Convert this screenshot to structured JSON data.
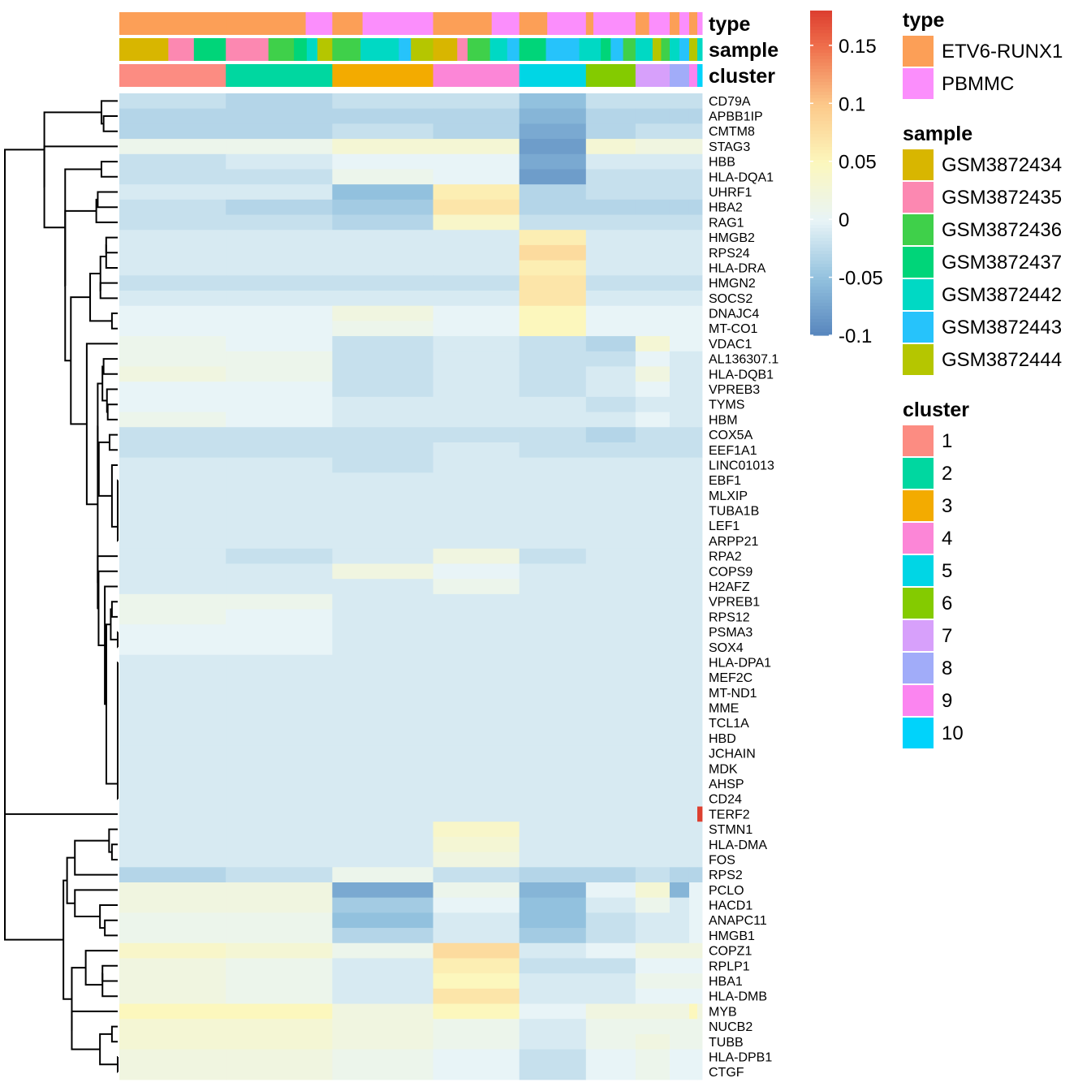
{
  "chart_data": {
    "type": "heatmap",
    "title": "",
    "annotations": [
      {
        "name": "type",
        "label": "type"
      },
      {
        "name": "sample",
        "label": "sample"
      },
      {
        "name": "cluster",
        "label": "cluster"
      }
    ],
    "column_groups": [
      {
        "cluster": "1",
        "width": 131,
        "type_segments": [
          [
            "ETV6-RUNX1",
            1.0
          ]
        ],
        "sample_segments": [
          [
            "GSM3872434",
            0.46
          ],
          [
            "GSM3872435",
            0.24
          ],
          [
            "GSM3872437",
            0.3
          ]
        ]
      },
      {
        "cluster": "2",
        "width": 131,
        "type_segments": [
          [
            "ETV6-RUNX1",
            0.75
          ],
          [
            "PBMMC",
            0.25
          ]
        ],
        "sample_segments": [
          [
            "GSM3872435",
            0.4
          ],
          [
            "GSM3872436",
            0.24
          ],
          [
            "GSM3872437",
            0.12
          ],
          [
            "GSM3872442",
            0.1
          ],
          [
            "GSM3872444",
            0.14
          ]
        ]
      },
      {
        "cluster": "3",
        "width": 124,
        "type_segments": [
          [
            "ETV6-RUNX1",
            0.3
          ],
          [
            "PBMMC",
            0.7
          ]
        ],
        "sample_segments": [
          [
            "GSM3872436",
            0.28
          ],
          [
            "GSM3872442",
            0.38
          ],
          [
            "GSM3872443",
            0.12
          ],
          [
            "GSM3872444",
            0.22
          ]
        ]
      },
      {
        "cluster": "4",
        "width": 106,
        "type_segments": [
          [
            "ETV6-RUNX1",
            0.68
          ],
          [
            "PBMMC",
            0.32
          ]
        ],
        "sample_segments": [
          [
            "GSM3872434",
            0.28
          ],
          [
            "GSM3872435",
            0.12
          ],
          [
            "GSM3872436",
            0.26
          ],
          [
            "GSM3872442",
            0.2
          ],
          [
            "GSM3872443",
            0.14
          ]
        ]
      },
      {
        "cluster": "5",
        "width": 82,
        "type_segments": [
          [
            "ETV6-RUNX1",
            0.42
          ],
          [
            "PBMMC",
            0.58
          ]
        ],
        "sample_segments": [
          [
            "GSM3872437",
            0.4
          ],
          [
            "GSM3872443",
            0.5
          ],
          [
            "GSM3872442",
            0.1
          ]
        ]
      },
      {
        "cluster": "6",
        "width": 61,
        "type_segments": [
          [
            "ETV6-RUNX1",
            0.15
          ],
          [
            "PBMMC",
            0.85
          ]
        ],
        "sample_segments": [
          [
            "GSM3872442",
            0.3
          ],
          [
            "GSM3872437",
            0.2
          ],
          [
            "GSM3872443",
            0.25
          ],
          [
            "GSM3872436",
            0.25
          ]
        ]
      },
      {
        "cluster": "7",
        "width": 42,
        "type_segments": [
          [
            "ETV6-RUNX1",
            0.4
          ],
          [
            "PBMMC",
            0.6
          ]
        ],
        "sample_segments": [
          [
            "GSM3872442",
            0.5
          ],
          [
            "GSM3872444",
            0.25
          ],
          [
            "GSM3872436",
            0.25
          ]
        ]
      },
      {
        "cluster": "8",
        "width": 24,
        "type_segments": [
          [
            "ETV6-RUNX1",
            0.5
          ],
          [
            "PBMMC",
            0.5
          ]
        ],
        "sample_segments": [
          [
            "GSM3872442",
            0.5
          ],
          [
            "GSM3872443",
            0.5
          ]
        ]
      },
      {
        "cluster": "9",
        "width": 10,
        "type_segments": [
          [
            "ETV6-RUNX1",
            1.0
          ]
        ],
        "sample_segments": [
          [
            "GSM3872444",
            1.0
          ]
        ]
      },
      {
        "cluster": "10",
        "width": 6,
        "type_segments": [
          [
            "PBMMC",
            1.0
          ]
        ],
        "sample_segments": [
          [
            "GSM3872442",
            1.0
          ]
        ]
      }
    ],
    "genes": [
      "CD79A",
      "APBB1IP",
      "CMTM8",
      "STAG3",
      "HBB",
      "HLA-DQA1",
      "UHRF1",
      "HBA2",
      "RAG1",
      "HMGB2",
      "RPS24",
      "HLA-DRA",
      "HMGN2",
      "SOCS2",
      "DNAJC4",
      "MT-CO1",
      "VDAC1",
      "AL136307.1",
      "HLA-DQB1",
      "VPREB3",
      "TYMS",
      "HBM",
      "COX5A",
      "EEF1A1",
      "LINC01013",
      "EBF1",
      "MLXIP",
      "TUBA1B",
      "LEF1",
      "ARPP21",
      "RPA2",
      "COPS9",
      "H2AFZ",
      "VPREB1",
      "RPS12",
      "PSMA3",
      "SOX4",
      "HLA-DPA1",
      "MEF2C",
      "MT-ND1",
      "MME",
      "TCL1A",
      "HBD",
      "JCHAIN",
      "MDK",
      "AHSP",
      "CD24",
      "TERF2",
      "STMN1",
      "HLA-DMA",
      "FOS",
      "RPS2",
      "PCLO",
      "HACD1",
      "ANAPC11",
      "HMGB1",
      "COPZ1",
      "RPLP1",
      "HBA1",
      "HLA-DMB",
      "MYB",
      "NUCB2",
      "TUBB",
      "HLA-DPB1",
      "CTGF"
    ],
    "values_by_cluster": {
      "CD79A": [
        -0.02,
        -0.03,
        -0.02,
        -0.02,
        -0.05,
        -0.02,
        -0.02,
        -0.02,
        -0.02,
        -0.02
      ],
      "APBB1IP": [
        -0.03,
        -0.03,
        -0.03,
        -0.03,
        -0.06,
        -0.03,
        -0.03,
        -0.03,
        -0.03,
        -0.03
      ],
      "CMTM8": [
        -0.03,
        -0.03,
        -0.02,
        -0.03,
        -0.07,
        -0.03,
        -0.02,
        -0.02,
        -0.02,
        -0.02
      ],
      "STAG3": [
        0.01,
        0.01,
        0.03,
        0.03,
        -0.08,
        0.03,
        0.02,
        0.02,
        0.02,
        0.02
      ],
      "HBB": [
        -0.02,
        -0.01,
        0.0,
        0.0,
        -0.07,
        -0.01,
        -0.01,
        -0.01,
        -0.01,
        -0.01
      ],
      "HLA-DQA1": [
        -0.02,
        -0.02,
        0.01,
        0.0,
        -0.08,
        -0.02,
        -0.02,
        -0.02,
        -0.02,
        -0.02
      ],
      "UHRF1": [
        -0.01,
        -0.01,
        -0.05,
        0.06,
        -0.03,
        -0.02,
        -0.02,
        -0.02,
        -0.02,
        -0.02
      ],
      "HBA2": [
        -0.02,
        -0.03,
        -0.04,
        0.07,
        -0.03,
        -0.03,
        -0.03,
        -0.03,
        -0.03,
        -0.03
      ],
      "RAG1": [
        -0.02,
        -0.02,
        -0.03,
        0.04,
        -0.02,
        -0.02,
        -0.02,
        -0.02,
        -0.02,
        -0.02
      ],
      "HMGB2": [
        -0.01,
        -0.01,
        -0.01,
        -0.01,
        0.06,
        -0.01,
        -0.01,
        -0.01,
        -0.01,
        -0.01
      ],
      "RPS24": [
        -0.01,
        -0.01,
        -0.01,
        -0.01,
        0.08,
        -0.01,
        -0.01,
        -0.01,
        -0.01,
        -0.01
      ],
      "HLA-DRA": [
        -0.01,
        -0.01,
        -0.01,
        -0.01,
        0.06,
        -0.01,
        -0.01,
        -0.01,
        -0.01,
        -0.01
      ],
      "HMGN2": [
        -0.02,
        -0.02,
        -0.02,
        -0.02,
        0.07,
        -0.02,
        -0.02,
        -0.02,
        -0.02,
        -0.02
      ],
      "SOCS2": [
        -0.01,
        -0.01,
        -0.01,
        -0.01,
        0.07,
        -0.01,
        -0.01,
        -0.01,
        -0.01,
        -0.01
      ],
      "DNAJC4": [
        0.0,
        0.0,
        0.02,
        0.0,
        0.05,
        0.0,
        0.0,
        0.0,
        0.0,
        0.0
      ],
      "MT-CO1": [
        0.0,
        0.0,
        0.01,
        0.0,
        0.05,
        0.0,
        0.0,
        0.0,
        0.0,
        0.0
      ],
      "VDAC1": [
        0.01,
        0.0,
        -0.02,
        -0.01,
        -0.02,
        -0.03,
        0.03,
        0.0,
        0.0,
        0.0
      ],
      "AL136307.1": [
        0.01,
        0.01,
        -0.02,
        -0.01,
        -0.02,
        -0.02,
        0.0,
        -0.01,
        -0.01,
        -0.01
      ],
      "HLA-DQB1": [
        0.02,
        0.01,
        -0.02,
        -0.01,
        -0.02,
        -0.01,
        0.02,
        -0.01,
        -0.01,
        -0.01
      ],
      "VPREB3": [
        0.0,
        0.0,
        -0.02,
        -0.01,
        -0.02,
        -0.01,
        0.0,
        -0.01,
        -0.01,
        -0.01
      ],
      "TYMS": [
        0.0,
        0.0,
        -0.01,
        -0.01,
        -0.01,
        -0.02,
        -0.01,
        -0.01,
        -0.01,
        -0.01
      ],
      "HBM": [
        0.01,
        0.0,
        -0.01,
        -0.01,
        -0.01,
        -0.01,
        0.0,
        -0.01,
        -0.01,
        -0.01
      ],
      "COX5A": [
        -0.02,
        -0.02,
        -0.02,
        -0.02,
        -0.02,
        -0.03,
        -0.02,
        -0.02,
        -0.02,
        -0.02
      ],
      "EEF1A1": [
        -0.02,
        -0.02,
        -0.02,
        -0.01,
        -0.02,
        -0.02,
        -0.02,
        -0.02,
        -0.02,
        -0.02
      ],
      "LINC01013": [
        -0.01,
        -0.01,
        -0.02,
        -0.01,
        -0.01,
        -0.01,
        -0.01,
        -0.01,
        -0.01,
        -0.01
      ],
      "EBF1": [
        -0.01,
        -0.01,
        -0.01,
        -0.01,
        -0.01,
        -0.01,
        -0.01,
        -0.01,
        -0.01,
        -0.01
      ],
      "MLXIP": [
        -0.01,
        -0.01,
        -0.01,
        -0.01,
        -0.01,
        -0.01,
        -0.01,
        -0.01,
        -0.01,
        -0.01
      ],
      "TUBA1B": [
        -0.01,
        -0.01,
        -0.01,
        -0.01,
        -0.01,
        -0.01,
        -0.01,
        -0.01,
        -0.01,
        -0.01
      ],
      "LEF1": [
        -0.01,
        -0.01,
        -0.01,
        -0.01,
        -0.01,
        -0.01,
        -0.01,
        -0.01,
        -0.01,
        -0.01
      ],
      "ARPP21": [
        -0.01,
        -0.01,
        -0.01,
        -0.01,
        -0.01,
        -0.01,
        -0.01,
        -0.01,
        -0.01,
        -0.01
      ],
      "RPA2": [
        -0.01,
        -0.02,
        -0.01,
        0.02,
        -0.02,
        -0.01,
        -0.01,
        -0.01,
        -0.01,
        -0.01
      ],
      "COPS9": [
        -0.01,
        -0.01,
        0.02,
        0.0,
        -0.01,
        -0.01,
        -0.01,
        -0.01,
        -0.01,
        -0.01
      ],
      "H2AFZ": [
        -0.01,
        -0.01,
        -0.01,
        0.01,
        -0.01,
        -0.01,
        -0.01,
        -0.01,
        -0.01,
        -0.01
      ],
      "VPREB1": [
        0.01,
        0.01,
        -0.01,
        -0.01,
        -0.01,
        -0.01,
        -0.01,
        -0.01,
        -0.01,
        -0.01
      ],
      "RPS12": [
        0.01,
        0.0,
        -0.01,
        -0.01,
        -0.01,
        -0.01,
        -0.01,
        -0.01,
        -0.01,
        -0.01
      ],
      "PSMA3": [
        0.0,
        0.0,
        -0.01,
        -0.01,
        -0.01,
        -0.01,
        -0.01,
        -0.01,
        -0.01,
        -0.01
      ],
      "SOX4": [
        0.0,
        0.0,
        -0.01,
        -0.01,
        -0.01,
        -0.01,
        -0.01,
        -0.01,
        -0.01,
        -0.01
      ],
      "HLA-DPA1": [
        -0.01,
        -0.01,
        -0.01,
        -0.01,
        -0.01,
        -0.01,
        -0.01,
        -0.01,
        -0.01,
        -0.01
      ],
      "MEF2C": [
        -0.01,
        -0.01,
        -0.01,
        -0.01,
        -0.01,
        -0.01,
        -0.01,
        -0.01,
        -0.01,
        -0.01
      ],
      "MT-ND1": [
        -0.01,
        -0.01,
        -0.01,
        -0.01,
        -0.01,
        -0.01,
        -0.01,
        -0.01,
        -0.01,
        -0.01
      ],
      "MME": [
        -0.01,
        -0.01,
        -0.01,
        -0.01,
        -0.01,
        -0.01,
        -0.01,
        -0.01,
        -0.01,
        -0.01
      ],
      "TCL1A": [
        -0.01,
        -0.01,
        -0.01,
        -0.01,
        -0.01,
        -0.01,
        -0.01,
        -0.01,
        -0.01,
        -0.01
      ],
      "HBD": [
        -0.01,
        -0.01,
        -0.01,
        -0.01,
        -0.01,
        -0.01,
        -0.01,
        -0.01,
        -0.01,
        -0.01
      ],
      "JCHAIN": [
        -0.01,
        -0.01,
        -0.01,
        -0.01,
        -0.01,
        -0.01,
        -0.01,
        -0.01,
        -0.01,
        -0.01
      ],
      "MDK": [
        -0.01,
        -0.01,
        -0.01,
        -0.01,
        -0.01,
        -0.01,
        -0.01,
        -0.01,
        -0.01,
        -0.01
      ],
      "AHSP": [
        -0.01,
        -0.01,
        -0.01,
        -0.01,
        -0.01,
        -0.01,
        -0.01,
        -0.01,
        -0.01,
        -0.01
      ],
      "CD24": [
        -0.01,
        -0.01,
        -0.01,
        -0.01,
        -0.01,
        -0.01,
        -0.01,
        -0.01,
        -0.01,
        -0.01
      ],
      "TERF2": [
        -0.01,
        -0.01,
        -0.01,
        -0.01,
        -0.01,
        -0.01,
        -0.01,
        -0.01,
        -0.01,
        0.18
      ],
      "STMN1": [
        -0.01,
        -0.01,
        -0.01,
        0.04,
        -0.01,
        -0.01,
        -0.01,
        -0.01,
        -0.01,
        -0.01
      ],
      "HLA-DMA": [
        -0.01,
        -0.01,
        -0.01,
        0.03,
        -0.01,
        -0.01,
        -0.01,
        -0.01,
        -0.01,
        -0.01
      ],
      "FOS": [
        -0.01,
        -0.01,
        -0.01,
        0.02,
        -0.01,
        -0.01,
        -0.01,
        -0.01,
        -0.01,
        -0.01
      ],
      "RPS2": [
        -0.03,
        -0.02,
        0.01,
        -0.02,
        -0.03,
        -0.03,
        -0.02,
        -0.03,
        -0.03,
        -0.03
      ],
      "PCLO": [
        0.02,
        0.02,
        -0.07,
        0.01,
        -0.06,
        0.0,
        0.03,
        -0.06,
        0.0,
        0.0
      ],
      "HACD1": [
        0.02,
        0.02,
        -0.04,
        0.0,
        -0.05,
        -0.01,
        0.01,
        -0.01,
        0.0,
        0.0
      ],
      "ANAPC11": [
        0.01,
        0.01,
        -0.05,
        -0.01,
        -0.05,
        -0.02,
        -0.01,
        -0.01,
        0.0,
        0.0
      ],
      "HMGB1": [
        0.01,
        0.01,
        -0.03,
        -0.01,
        -0.04,
        -0.02,
        -0.01,
        -0.01,
        0.0,
        0.0
      ],
      "COPZ1": [
        0.04,
        0.03,
        0.01,
        0.08,
        -0.01,
        0.0,
        0.02,
        0.02,
        0.02,
        0.02
      ],
      "RPLP1": [
        0.02,
        0.01,
        -0.01,
        0.06,
        -0.02,
        -0.02,
        0.0,
        0.0,
        0.0,
        0.0
      ],
      "HBA1": [
        0.02,
        0.01,
        -0.01,
        0.05,
        -0.01,
        -0.01,
        0.01,
        0.01,
        0.01,
        0.01
      ],
      "HLA-DMB": [
        0.02,
        0.01,
        -0.01,
        0.07,
        -0.01,
        -0.01,
        0.0,
        0.0,
        0.0,
        0.0
      ],
      "MYB": [
        0.05,
        0.05,
        0.02,
        0.05,
        0.0,
        0.02,
        0.02,
        0.02,
        0.05,
        0.02
      ],
      "NUCB2": [
        0.03,
        0.03,
        0.02,
        0.01,
        -0.01,
        0.01,
        0.01,
        0.01,
        0.01,
        0.01
      ],
      "TUBB": [
        0.03,
        0.03,
        0.02,
        0.01,
        -0.01,
        0.01,
        0.02,
        0.01,
        0.01,
        0.01
      ],
      "HLA-DPB1": [
        0.02,
        0.02,
        0.01,
        0.0,
        -0.02,
        0.0,
        0.01,
        0.0,
        0.0,
        0.0
      ],
      "CTGF": [
        0.02,
        0.02,
        0.01,
        0.0,
        -0.02,
        0.0,
        0.01,
        0.0,
        0.0,
        0.0
      ]
    },
    "colorbar": {
      "min": -0.1,
      "max": 0.18,
      "ticks": [
        0.15,
        0.1,
        0.05,
        0,
        -0.05,
        -0.1
      ],
      "tick_labels": [
        "0.15",
        "0.1",
        "0.05",
        "0",
        "-0.05",
        "-0.1"
      ],
      "stops": [
        {
          "value": -0.11,
          "color": "#4a78b6"
        },
        {
          "value": -0.05,
          "color": "#92c1de"
        },
        {
          "value": 0,
          "color": "#e8f4f7"
        },
        {
          "value": 0.05,
          "color": "#fcf7bd"
        },
        {
          "value": 0.1,
          "color": "#fcc98a"
        },
        {
          "value": 0.15,
          "color": "#ef6f4c"
        },
        {
          "value": 0.19,
          "color": "#d73027"
        }
      ]
    },
    "legends": [
      {
        "title": "type",
        "items": [
          {
            "label": "ETV6-RUNX1",
            "color": "#fc9f57"
          },
          {
            "label": "PBMMC",
            "color": "#fb8efc"
          }
        ]
      },
      {
        "title": "sample",
        "items": [
          {
            "label": "GSM3872434",
            "color": "#d8b600"
          },
          {
            "label": "GSM3872435",
            "color": "#fc88b1"
          },
          {
            "label": "GSM3872436",
            "color": "#3fd04a"
          },
          {
            "label": "GSM3872437",
            "color": "#00d579"
          },
          {
            "label": "GSM3872442",
            "color": "#00d9c4"
          },
          {
            "label": "GSM3872443",
            "color": "#26c3fb"
          },
          {
            "label": "GSM3872444",
            "color": "#b5c600"
          }
        ]
      },
      {
        "title": "cluster",
        "items": [
          {
            "label": "1",
            "color": "#fc8c82"
          },
          {
            "label": "2",
            "color": "#00d7a0"
          },
          {
            "label": "3",
            "color": "#f3ab00"
          },
          {
            "label": "4",
            "color": "#fc86d7"
          },
          {
            "label": "5",
            "color": "#00d6e5"
          },
          {
            "label": "6",
            "color": "#84cb00"
          },
          {
            "label": "7",
            "color": "#d7a0fb"
          },
          {
            "label": "8",
            "color": "#a1acf9"
          },
          {
            "label": "9",
            "color": "#fb85f0"
          },
          {
            "label": "10",
            "color": "#00d3fb"
          }
        ]
      }
    ],
    "legend_placement": "right",
    "row_dendrogram": true
  }
}
